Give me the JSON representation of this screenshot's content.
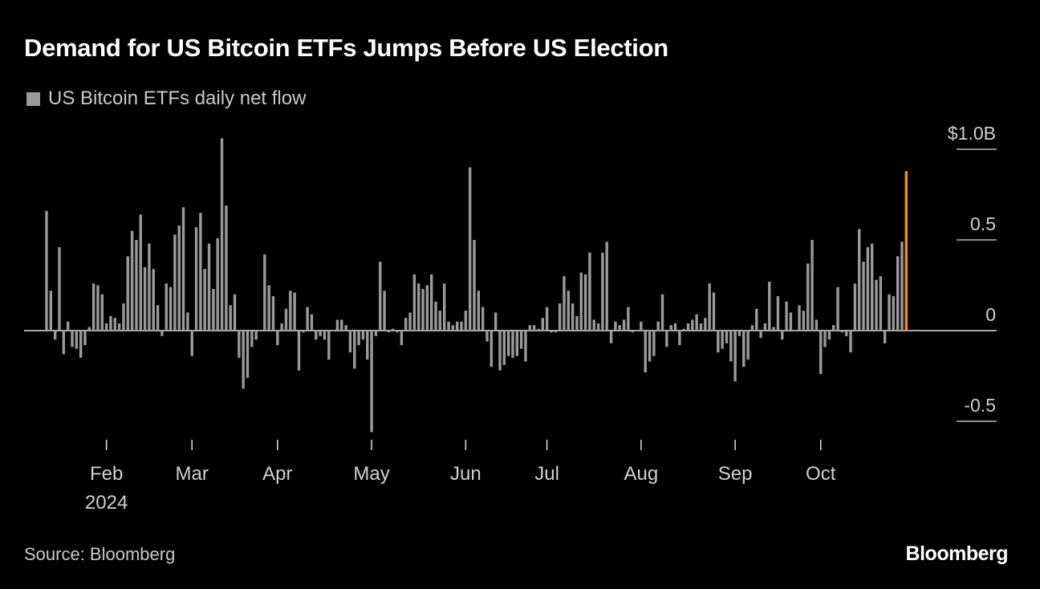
{
  "title": "Demand for US Bitcoin ETFs Jumps Before US Election",
  "legend_label": "US Bitcoin ETFs daily net flow",
  "source": "Source: Bloomberg",
  "logo": "Bloomberg",
  "colors": {
    "background": "#000000",
    "bar": "#9a9a9a",
    "highlight": "#e8912b"
  },
  "chart_data": {
    "type": "bar",
    "title": "Demand for US Bitcoin ETFs Jumps Before US Election",
    "series_name": "US Bitcoin ETFs daily net flow",
    "unit": "$B",
    "ylim": [
      -0.6,
      1.05
    ],
    "y_ticks": [
      {
        "value": 1.0,
        "label": "$1.0B"
      },
      {
        "value": 0.5,
        "label": "0.5"
      },
      {
        "value": 0,
        "label": "0"
      },
      {
        "value": -0.5,
        "label": "-0.5"
      }
    ],
    "x_ticks": [
      {
        "date": "2024-02-01",
        "label": "Feb",
        "sublabel": "2024"
      },
      {
        "date": "2024-03-01",
        "label": "Mar"
      },
      {
        "date": "2024-04-01",
        "label": "Apr"
      },
      {
        "date": "2024-05-01",
        "label": "May"
      },
      {
        "date": "2024-06-03",
        "label": "Jun"
      },
      {
        "date": "2024-07-01",
        "label": "Jul"
      },
      {
        "date": "2024-08-01",
        "label": "Aug"
      },
      {
        "date": "2024-09-03",
        "label": "Sep"
      },
      {
        "date": "2024-10-01",
        "label": "Oct"
      }
    ],
    "highlight_date": "2024-10-29",
    "grid": false,
    "months": [
      {
        "month": "2024-01",
        "days": [
          11,
          12,
          16,
          17,
          18,
          19,
          22,
          23,
          24,
          25,
          26,
          29,
          30,
          31
        ],
        "values": [
          0.66,
          0.22,
          -0.05,
          0.46,
          -0.13,
          0.05,
          -0.09,
          -0.1,
          -0.15,
          -0.08,
          0.02,
          0.26,
          0.25,
          0.2
        ]
      },
      {
        "month": "2024-02",
        "days": [
          1,
          2,
          5,
          6,
          7,
          8,
          9,
          12,
          13,
          14,
          15,
          16,
          20,
          21,
          22,
          23,
          26,
          27,
          28,
          29
        ],
        "values": [
          0.04,
          0.08,
          0.07,
          0.04,
          0.15,
          0.41,
          0.55,
          0.5,
          0.64,
          0.35,
          0.48,
          0.34,
          0.14,
          -0.03,
          0.26,
          0.24,
          0.53,
          0.58,
          0.68,
          0.1
        ]
      },
      {
        "month": "2024-03",
        "days": [
          1,
          4,
          5,
          6,
          7,
          8,
          11,
          12,
          13,
          14,
          15,
          18,
          19,
          20,
          21,
          22,
          25,
          26,
          27,
          28
        ],
        "values": [
          -0.14,
          0.57,
          0.65,
          0.34,
          0.48,
          0.23,
          0.51,
          1.06,
          0.69,
          0.14,
          0.2,
          -0.15,
          -0.32,
          -0.26,
          -0.09,
          -0.05,
          0.0,
          0.42,
          0.25,
          0.19
        ]
      },
      {
        "month": "2024-04",
        "days": [
          1,
          2,
          3,
          4,
          5,
          8,
          9,
          10,
          11,
          12,
          15,
          16,
          17,
          18,
          19,
          22,
          23,
          24,
          25,
          26,
          29,
          30
        ],
        "values": [
          -0.08,
          0.04,
          0.12,
          0.22,
          0.21,
          -0.22,
          -0.01,
          0.13,
          0.09,
          -0.05,
          -0.03,
          -0.05,
          -0.16,
          0.0,
          0.06,
          0.06,
          0.03,
          -0.12,
          -0.21,
          -0.08,
          -0.05,
          -0.16
        ]
      },
      {
        "month": "2024-05",
        "days": [
          1,
          2,
          3,
          6,
          7,
          8,
          9,
          10,
          13,
          14,
          15,
          16,
          17,
          20,
          21,
          22,
          23,
          24,
          28,
          29,
          30,
          31
        ],
        "values": [
          -0.56,
          -0.03,
          0.38,
          0.22,
          -0.01,
          0.01,
          -0.01,
          -0.08,
          0.07,
          0.1,
          0.31,
          0.26,
          0.23,
          0.25,
          0.31,
          0.16,
          0.11,
          0.26,
          0.05,
          0.03,
          0.05,
          0.05
        ]
      },
      {
        "month": "2024-06",
        "days": [
          3,
          4,
          5,
          6,
          7,
          10,
          11,
          12,
          13,
          14,
          17,
          18,
          20,
          21,
          24,
          25,
          26,
          27,
          28
        ],
        "values": [
          0.11,
          0.9,
          0.5,
          0.22,
          0.13,
          -0.06,
          -0.2,
          0.1,
          -0.22,
          -0.19,
          -0.14,
          -0.15,
          -0.14,
          -0.1,
          -0.17,
          0.03,
          0.03,
          0.01,
          0.07
        ]
      },
      {
        "month": "2024-07",
        "days": [
          1,
          2,
          3,
          5,
          8,
          9,
          10,
          11,
          12,
          15,
          16,
          17,
          18,
          19,
          22,
          23,
          24,
          25,
          26,
          29,
          30,
          31
        ],
        "values": [
          0.13,
          -0.01,
          -0.01,
          0.15,
          0.3,
          0.22,
          0.15,
          0.08,
          0.32,
          0.31,
          0.43,
          0.06,
          0.04,
          0.43,
          0.49,
          -0.07,
          0.05,
          0.03,
          0.06,
          0.13,
          -0.01,
          0.0
        ]
      },
      {
        "month": "2024-08",
        "days": [
          1,
          2,
          5,
          6,
          7,
          8,
          9,
          12,
          13,
          14,
          15,
          16,
          19,
          20,
          21,
          22,
          23,
          26,
          27,
          28,
          29,
          30
        ],
        "values": [
          0.05,
          -0.23,
          -0.17,
          -0.14,
          0.05,
          0.2,
          -0.09,
          0.03,
          0.04,
          -0.08,
          0.01,
          0.04,
          0.06,
          0.09,
          0.04,
          0.07,
          0.26,
          0.21,
          -0.12,
          -0.1,
          -0.07,
          -0.17
        ]
      },
      {
        "month": "2024-09",
        "days": [
          3,
          4,
          5,
          6,
          9,
          10,
          11,
          12,
          13,
          16,
          17,
          18,
          19,
          20,
          23,
          24,
          25,
          26,
          27,
          30
        ],
        "values": [
          -0.28,
          -0.03,
          -0.2,
          -0.16,
          0.03,
          0.12,
          -0.04,
          0.04,
          0.27,
          0.02,
          0.19,
          -0.05,
          0.16,
          0.1,
          0.0,
          0.14,
          0.11,
          0.37,
          0.5,
          0.06
        ]
      },
      {
        "month": "2024-10",
        "days": [
          1,
          2,
          3,
          4,
          7,
          8,
          9,
          10,
          11,
          14,
          15,
          16,
          17,
          18,
          21,
          22,
          23,
          24,
          25,
          28,
          29
        ],
        "values": [
          -0.24,
          -0.09,
          -0.05,
          0.03,
          0.24,
          -0.01,
          -0.03,
          -0.12,
          0.26,
          0.56,
          0.38,
          0.46,
          0.48,
          0.28,
          0.3,
          -0.07,
          0.2,
          0.19,
          0.41,
          0.49,
          0.88
        ]
      }
    ]
  }
}
